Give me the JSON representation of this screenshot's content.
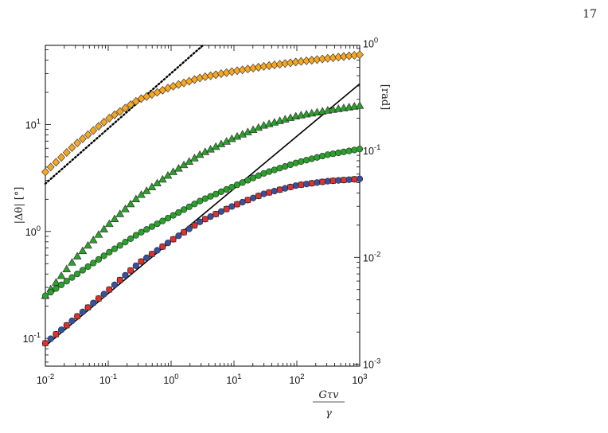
{
  "page_number": "17",
  "chart_data": {
    "type": "scatter",
    "xscale": "log",
    "yscale": "log",
    "xlim": [
      0.01,
      1000
    ],
    "ylim": [
      0.055,
      55
    ],
    "ylim_right": [
      0.00096,
      0.96
    ],
    "xticks": [
      "10-2",
      "10-1",
      "100",
      "101",
      "102",
      "103"
    ],
    "xtick_labels": [
      {
        "base": "10",
        "exp": "-2",
        "value": 0.01
      },
      {
        "base": "10",
        "exp": "-1",
        "value": 0.1
      },
      {
        "base": "10",
        "exp": "0",
        "value": 1
      },
      {
        "base": "10",
        "exp": "1",
        "value": 10
      },
      {
        "base": "10",
        "exp": "2",
        "value": 100
      },
      {
        "base": "10",
        "exp": "3",
        "value": 1000
      }
    ],
    "ytick_labels_left": [
      {
        "base": "10",
        "exp": "-1",
        "value": 0.1
      },
      {
        "base": "10",
        "exp": "0",
        "value": 1
      },
      {
        "base": "10",
        "exp": "1",
        "value": 10
      }
    ],
    "ytick_labels_right": [
      {
        "base": "10",
        "exp": "-3",
        "value": 0.001
      },
      {
        "base": "10",
        "exp": "-2",
        "value": 0.01
      },
      {
        "base": "10",
        "exp": "-1",
        "value": 0.1
      },
      {
        "base": "10",
        "exp": "0",
        "value": 1
      }
    ],
    "ylabel_left": "|Δθ| [°]",
    "ylabel_right": "[rad]",
    "xlabel_numerator": "Gτv",
    "xlabel_denominator": "γ",
    "grid": false,
    "series": [
      {
        "marker": "diamond",
        "color": "#f5a623",
        "x": [
          0.01,
          0.03,
          0.1,
          0.3,
          1,
          3,
          10,
          30,
          100,
          300,
          1000
        ],
        "y": [
          3.6,
          6.5,
          11.3,
          17.0,
          22.5,
          27.5,
          31.5,
          35.0,
          38.5,
          41.5,
          45.0
        ]
      },
      {
        "marker": "triangle",
        "color": "#2ca02c",
        "x": [
          0.01,
          0.03,
          0.1,
          0.3,
          1,
          3,
          10,
          30,
          100,
          300,
          1000
        ],
        "y": [
          0.25,
          0.56,
          1.15,
          2.1,
          3.5,
          5.3,
          7.5,
          9.8,
          12.0,
          13.5,
          15.0
        ]
      },
      {
        "marker": "circle",
        "color": "#2ca02c",
        "x": [
          0.01,
          0.03,
          0.1,
          0.3,
          1,
          3,
          10,
          30,
          100,
          300,
          1000
        ],
        "y": [
          0.25,
          0.39,
          0.63,
          0.95,
          1.38,
          1.95,
          2.65,
          3.5,
          4.4,
          5.2,
          5.9
        ]
      },
      {
        "marker": "circle",
        "color": "#3b4fa0",
        "x": [
          0.01,
          0.03,
          0.1,
          0.3,
          1,
          3,
          10,
          30,
          100,
          300,
          1000
        ],
        "y": [
          0.09,
          0.155,
          0.28,
          0.5,
          0.82,
          1.25,
          1.75,
          2.25,
          2.7,
          2.95,
          3.1
        ]
      },
      {
        "marker": "square",
        "color": "#e03030",
        "x": [
          0.01,
          0.03,
          0.1,
          0.3,
          1,
          3,
          10,
          30,
          100,
          300,
          1000
        ],
        "y": [
          0.09,
          0.155,
          0.28,
          0.5,
          0.82,
          1.25,
          1.75,
          2.25,
          2.7,
          2.95,
          3.1
        ]
      }
    ],
    "lines": [
      {
        "style": "dotted",
        "color": "#000000",
        "x": [
          0.01,
          3.2
        ],
        "y": [
          2.8,
          55
        ]
      },
      {
        "style": "solid",
        "color": "#000000",
        "x": [
          0.01,
          1000
        ],
        "y": [
          0.085,
          24
        ]
      }
    ]
  }
}
